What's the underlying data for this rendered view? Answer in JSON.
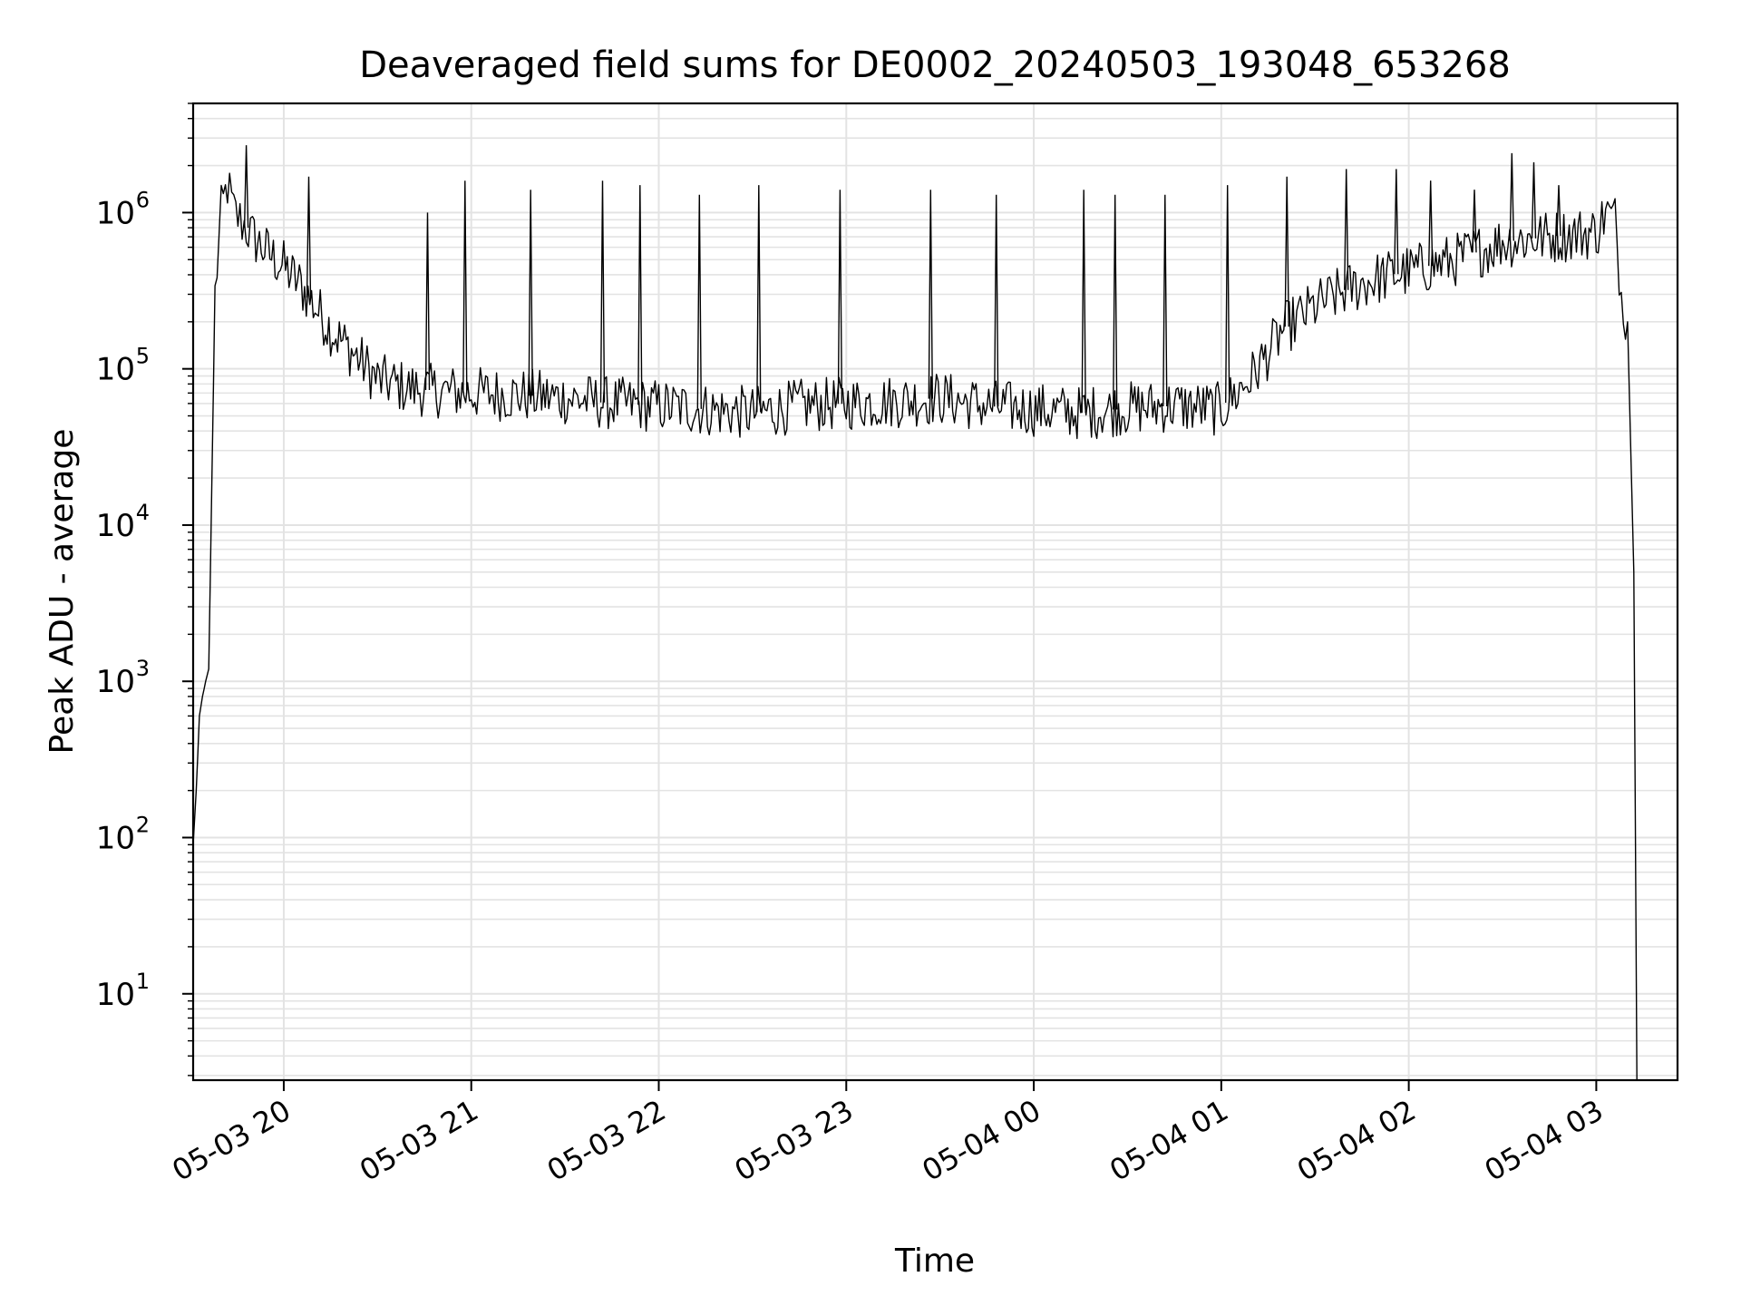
{
  "chart_data": {
    "type": "line",
    "title": "Deaveraged field sums for DE0002_20240503_193048_653268",
    "xlabel": "Time",
    "ylabel": "Peak ADU - average",
    "yscale": "log",
    "ylim": [
      2.8,
      5000000
    ],
    "xlim": [
      "2024-05-03 19:31",
      "2024-05-04 03:26"
    ],
    "grid": true,
    "legend": "none",
    "x_tick_labels": [
      "05-03 20",
      "05-03 21",
      "05-03 22",
      "05-03 23",
      "05-04 00",
      "05-04 01",
      "05-04 02",
      "05-04 03"
    ],
    "x_tick_values": [
      "2024-05-03 20:00",
      "2024-05-03 21:00",
      "2024-05-03 22:00",
      "2024-05-03 23:00",
      "2024-05-04 00:00",
      "2024-05-04 01:00",
      "2024-05-04 02:00",
      "2024-05-04 03:00"
    ],
    "y_tick_labels": [
      {
        "base": "10",
        "exp": "1",
        "value": 10
      },
      {
        "base": "10",
        "exp": "2",
        "value": 100
      },
      {
        "base": "10",
        "exp": "3",
        "value": 1000
      },
      {
        "base": "10",
        "exp": "4",
        "value": 10000
      },
      {
        "base": "10",
        "exp": "5",
        "value": 100000
      },
      {
        "base": "10",
        "exp": "6",
        "value": 1000000
      }
    ],
    "series": [
      {
        "color": "#000000",
        "x": [
          "2024-05-03 19:31",
          "2024-05-03 19:32",
          "2024-05-03 19:33",
          "2024-05-03 19:34",
          "2024-05-03 19:35",
          "2024-05-03 19:36",
          "2024-05-03 19:37",
          "2024-05-03 19:38",
          "2024-05-03 19:40",
          "2024-05-03 19:42",
          "2024-05-03 19:44",
          "2024-05-03 19:46",
          "2024-05-03 19:48",
          "2024-05-03 19:50",
          "2024-05-03 19:55",
          "2024-05-03 20:00",
          "2024-05-03 20:05",
          "2024-05-03 20:10",
          "2024-05-03 20:15",
          "2024-05-03 20:20",
          "2024-05-03 20:25",
          "2024-05-03 20:30",
          "2024-05-03 20:40",
          "2024-05-03 20:50",
          "2024-05-03 21:00",
          "2024-05-03 21:15",
          "2024-05-03 21:30",
          "2024-05-03 21:45",
          "2024-05-03 22:00",
          "2024-05-03 22:15",
          "2024-05-03 22:30",
          "2024-05-03 22:45",
          "2024-05-03 23:00",
          "2024-05-03 23:15",
          "2024-05-03 23:30",
          "2024-05-03 23:45",
          "2024-05-04 00:00",
          "2024-05-04 00:15",
          "2024-05-04 00:30",
          "2024-05-04 00:45",
          "2024-05-04 01:00",
          "2024-05-04 01:10",
          "2024-05-04 01:20",
          "2024-05-04 01:30",
          "2024-05-04 01:40",
          "2024-05-04 01:50",
          "2024-05-04 02:00",
          "2024-05-04 02:15",
          "2024-05-04 02:30",
          "2024-05-04 02:45",
          "2024-05-04 03:00",
          "2024-05-04 03:03",
          "2024-05-04 03:06",
          "2024-05-04 03:08",
          "2024-05-04 03:10",
          "2024-05-04 03:12",
          "2024-05-04 03:13"
        ],
        "y": [
          90,
          200,
          600,
          800,
          1000,
          1200,
          20000,
          300000,
          1000000,
          1500000,
          1000000,
          900000,
          800000,
          700000,
          550000,
          450000,
          350000,
          250000,
          180000,
          140000,
          110000,
          85000,
          75000,
          72000,
          70000,
          68000,
          65000,
          60000,
          58000,
          55000,
          52000,
          58000,
          60000,
          62000,
          65000,
          58000,
          55000,
          52000,
          56000,
          58000,
          55000,
          90000,
          180000,
          250000,
          320000,
          380000,
          420000,
          500000,
          650000,
          700000,
          750000,
          1000000,
          900000,
          300000,
          200000,
          5000,
          3
        ]
      }
    ],
    "spikes": [
      {
        "x": "2024-05-03 19:48",
        "y": 2700000
      },
      {
        "x": "2024-05-03 20:08",
        "y": 1700000
      },
      {
        "x": "2024-05-03 20:46",
        "y": 1000000
      },
      {
        "x": "2024-05-03 20:58",
        "y": 1600000
      },
      {
        "x": "2024-05-03 21:19",
        "y": 1400000
      },
      {
        "x": "2024-05-03 21:42",
        "y": 1600000
      },
      {
        "x": "2024-05-03 21:54",
        "y": 1500000
      },
      {
        "x": "2024-05-03 22:13",
        "y": 1300000
      },
      {
        "x": "2024-05-03 22:32",
        "y": 1500000
      },
      {
        "x": "2024-05-03 22:58",
        "y": 1400000
      },
      {
        "x": "2024-05-03 23:27",
        "y": 1400000
      },
      {
        "x": "2024-05-03 23:48",
        "y": 1300000
      },
      {
        "x": "2024-05-04 00:16",
        "y": 1400000
      },
      {
        "x": "2024-05-04 00:26",
        "y": 1300000
      },
      {
        "x": "2024-05-04 00:42",
        "y": 1300000
      },
      {
        "x": "2024-05-04 01:02",
        "y": 1500000
      },
      {
        "x": "2024-05-04 01:21",
        "y": 1700000
      },
      {
        "x": "2024-05-04 01:40",
        "y": 1900000
      },
      {
        "x": "2024-05-04 01:56",
        "y": 1900000
      },
      {
        "x": "2024-05-04 02:07",
        "y": 1600000
      },
      {
        "x": "2024-05-04 02:21",
        "y": 1400000
      },
      {
        "x": "2024-05-04 02:33",
        "y": 2400000
      },
      {
        "x": "2024-05-04 02:40",
        "y": 2100000
      },
      {
        "x": "2024-05-04 02:48",
        "y": 1500000
      }
    ]
  }
}
